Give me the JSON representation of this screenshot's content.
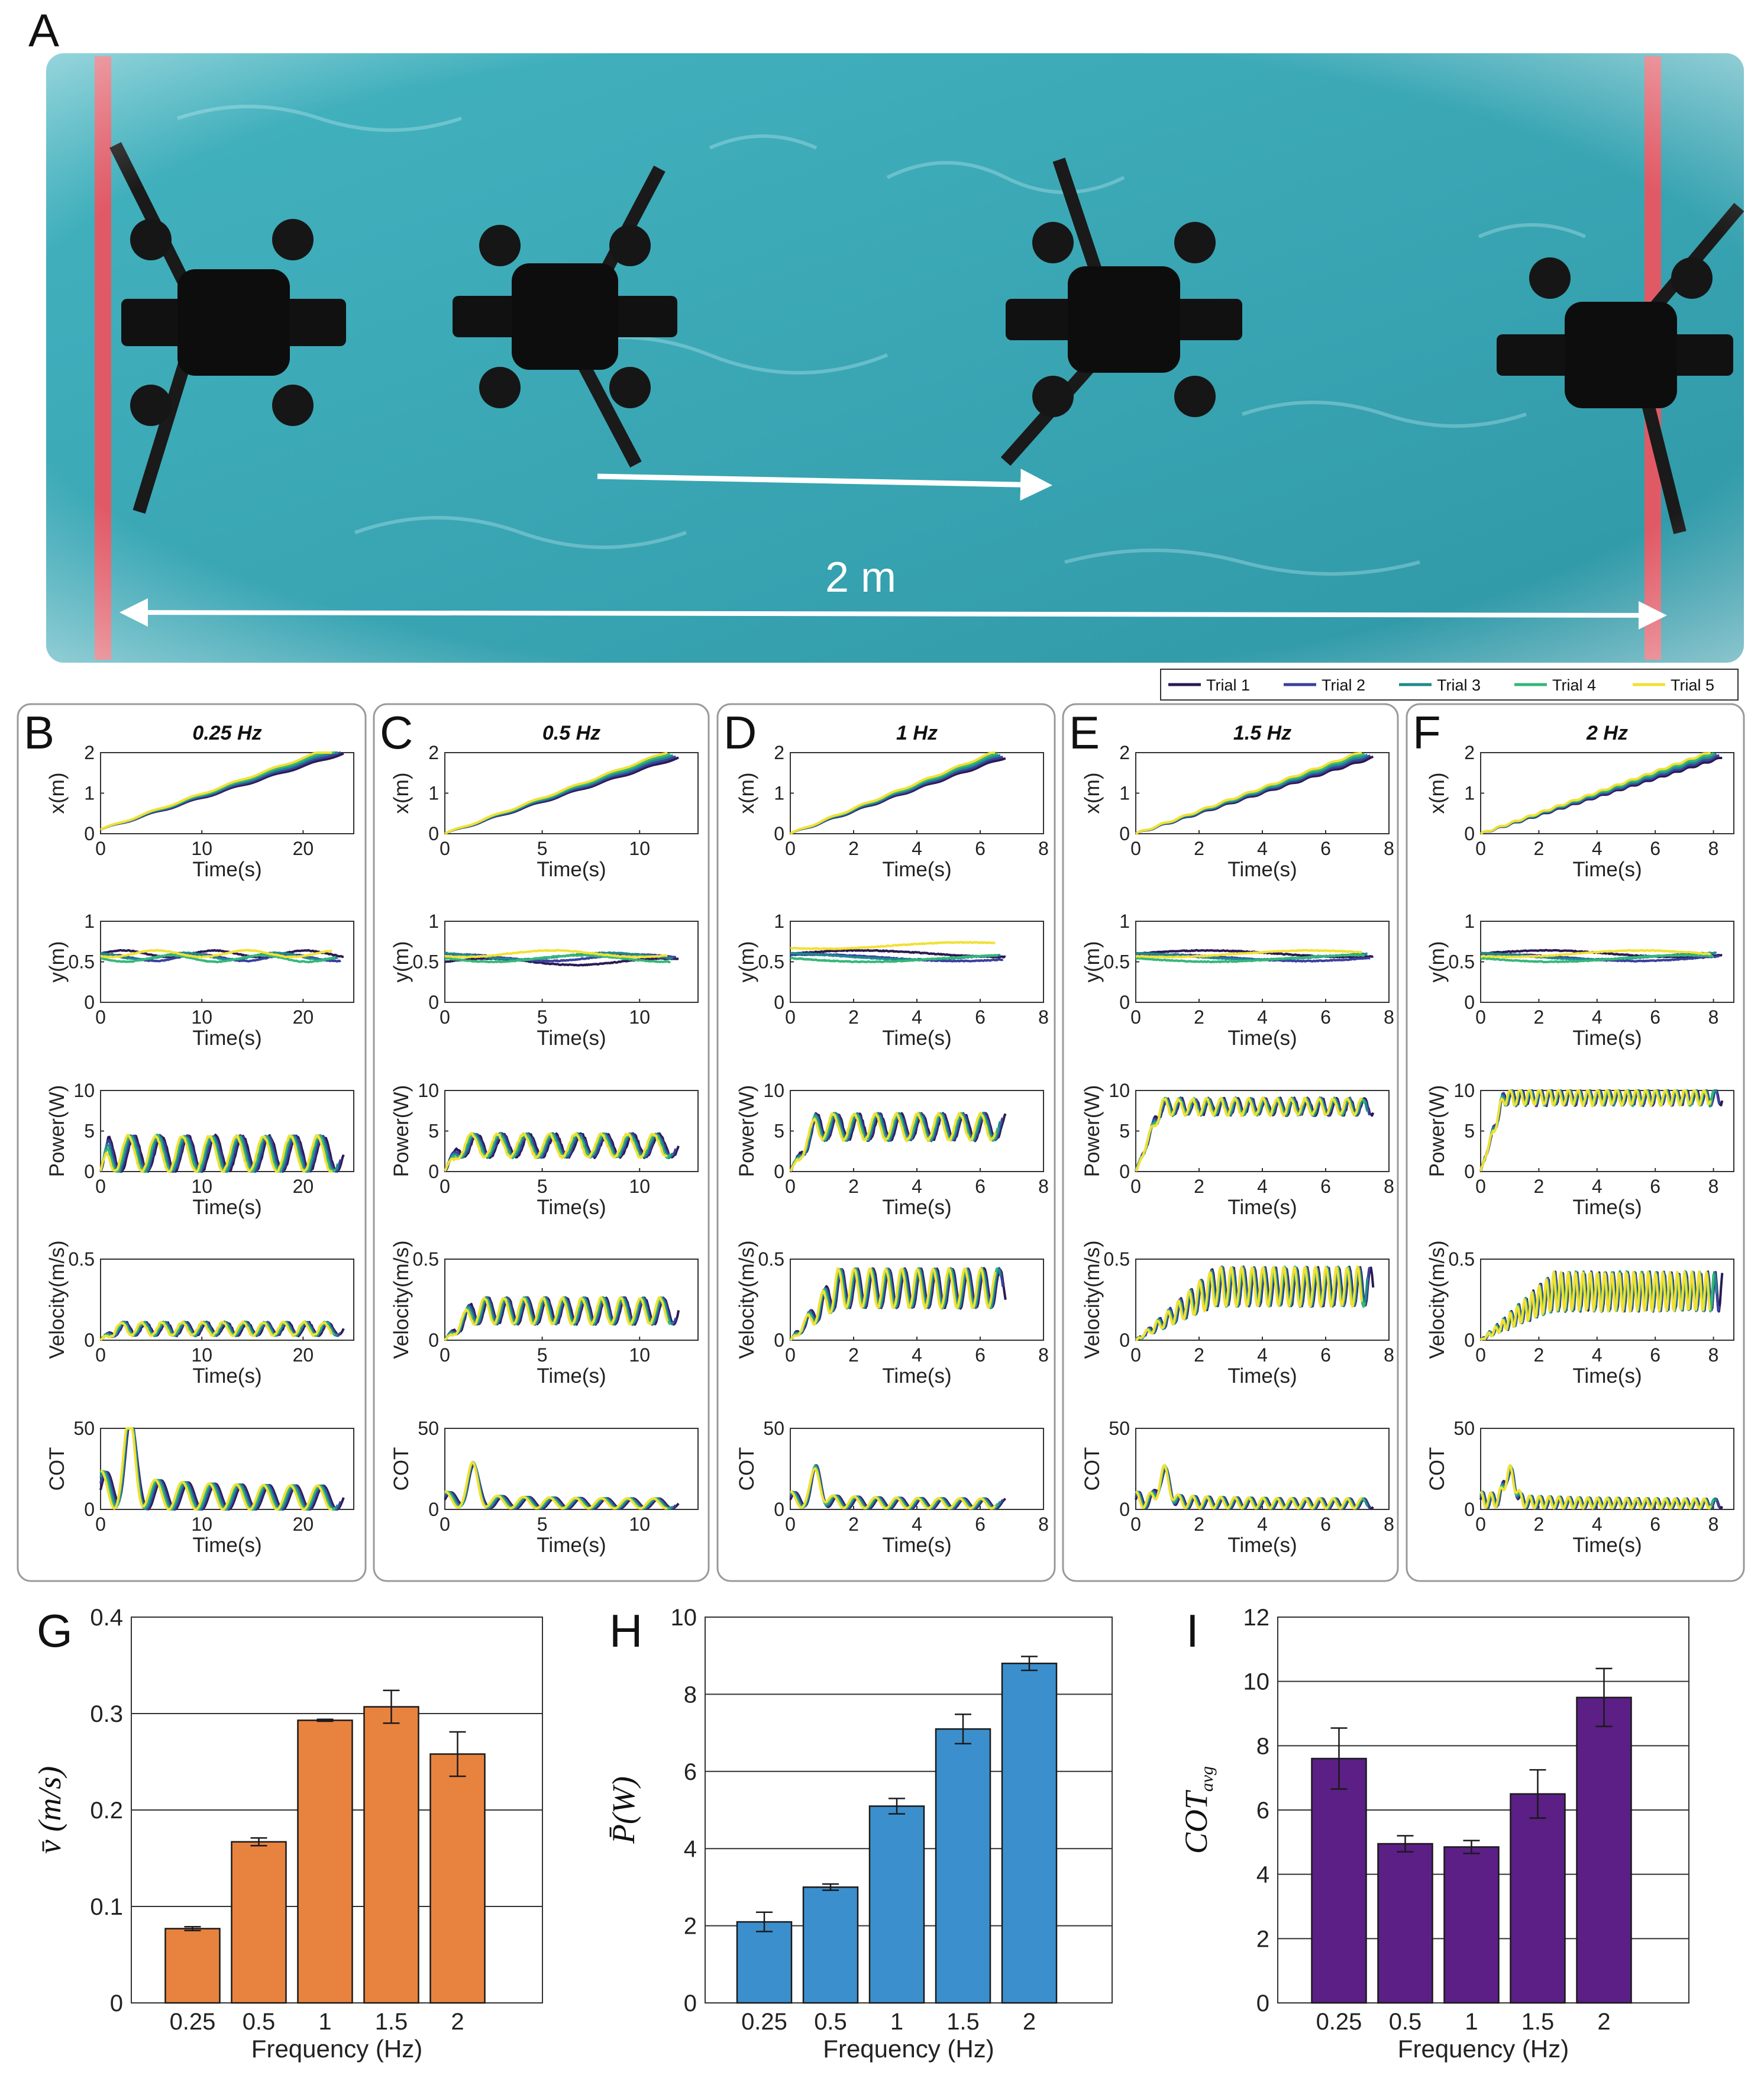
{
  "photo": {
    "label": "A",
    "distance_label": "2 m",
    "colors": {
      "water": "#3aa6b4",
      "water_dark": "#2a8896",
      "tape": "#e05a66",
      "robot": "#121212"
    }
  },
  "legend": [
    "Trial 1",
    "Trial 2",
    "Trial 3",
    "Trial 4",
    "Trial 5"
  ],
  "trial_colors": [
    "#2a1a52",
    "#3b3f9e",
    "#1f8a8c",
    "#35b779",
    "#f2e034"
  ],
  "chart_data": [
    {
      "type": "line",
      "panel": "B",
      "title": "0.25 Hz",
      "freq": 0.25,
      "tmax": 24,
      "xlim": [
        0,
        25
      ],
      "xticks": [
        0,
        10,
        20
      ],
      "xlabel": "Time(s)",
      "rows": [
        {
          "ylabel": "x(m)",
          "ylim": [
            0,
            2
          ],
          "yticks": [
            0,
            1,
            2
          ]
        },
        {
          "ylabel": "y(m)",
          "ylim": [
            0,
            1
          ],
          "yticks": [
            0,
            0.5,
            1
          ]
        },
        {
          "ylabel": "Power(W)",
          "ylim": [
            0,
            10
          ],
          "yticks": [
            0,
            5,
            10
          ]
        },
        {
          "ylabel": "Velocity(m/s)",
          "ylim": [
            0,
            0.5
          ],
          "yticks": [
            0,
            0.5
          ]
        },
        {
          "ylabel": "COT",
          "ylim": [
            0,
            50
          ],
          "yticks": [
            0,
            50
          ]
        }
      ]
    },
    {
      "type": "line",
      "panel": "C",
      "title": "0.5 Hz",
      "freq": 0.5,
      "tmax": 12,
      "xlim": [
        0,
        13
      ],
      "xticks": [
        0,
        5,
        10
      ],
      "xlabel": "Time(s)",
      "rows": [
        {
          "ylabel": "x(m)",
          "ylim": [
            0,
            2
          ],
          "yticks": [
            0,
            1,
            2
          ]
        },
        {
          "ylabel": "y(m)",
          "ylim": [
            0,
            1
          ],
          "yticks": [
            0,
            0.5,
            1
          ]
        },
        {
          "ylabel": "Power(W)",
          "ylim": [
            0,
            10
          ],
          "yticks": [
            0,
            5,
            10
          ]
        },
        {
          "ylabel": "Velocity(m/s)",
          "ylim": [
            0,
            0.5
          ],
          "yticks": [
            0,
            0.5
          ]
        },
        {
          "ylabel": "COT",
          "ylim": [
            0,
            50
          ],
          "yticks": [
            0,
            50
          ]
        }
      ]
    },
    {
      "type": "line",
      "panel": "D",
      "title": "1 Hz",
      "freq": 1,
      "tmax": 6.8,
      "xlim": [
        0,
        8
      ],
      "xticks": [
        0,
        2,
        4,
        6,
        8
      ],
      "xlabel": "Time(s)",
      "rows": [
        {
          "ylabel": "x(m)",
          "ylim": [
            0,
            2
          ],
          "yticks": [
            0,
            1,
            2
          ]
        },
        {
          "ylabel": "y(m)",
          "ylim": [
            0,
            1
          ],
          "yticks": [
            0,
            0.5,
            1
          ]
        },
        {
          "ylabel": "Power(W)",
          "ylim": [
            0,
            10
          ],
          "yticks": [
            0,
            5,
            10
          ]
        },
        {
          "ylabel": "Velocity(m/s)",
          "ylim": [
            0,
            0.5
          ],
          "yticks": [
            0,
            0.5
          ]
        },
        {
          "ylabel": "COT",
          "ylim": [
            0,
            50
          ],
          "yticks": [
            0,
            50
          ]
        }
      ]
    },
    {
      "type": "line",
      "panel": "E",
      "title": "1.5 Hz",
      "freq": 1.5,
      "tmax": 7.5,
      "xlim": [
        0,
        8
      ],
      "xticks": [
        0,
        2,
        4,
        6,
        8
      ],
      "xlabel": "Time(s)",
      "rows": [
        {
          "ylabel": "x(m)",
          "ylim": [
            0,
            2
          ],
          "yticks": [
            0,
            1,
            2
          ]
        },
        {
          "ylabel": "y(m)",
          "ylim": [
            0,
            1
          ],
          "yticks": [
            0,
            0.5,
            1
          ]
        },
        {
          "ylabel": "Power(W)",
          "ylim": [
            0,
            10
          ],
          "yticks": [
            0,
            5,
            10
          ]
        },
        {
          "ylabel": "Velocity(m/s)",
          "ylim": [
            0,
            0.5
          ],
          "yticks": [
            0,
            0.5
          ]
        },
        {
          "ylabel": "COT",
          "ylim": [
            0,
            50
          ],
          "yticks": [
            0,
            50
          ]
        }
      ]
    },
    {
      "type": "line",
      "panel": "F",
      "title": "2 Hz",
      "freq": 2,
      "tmax": 8.3,
      "xlim": [
        0,
        8.7
      ],
      "xticks": [
        0,
        2,
        4,
        6,
        8
      ],
      "xlabel": "Time(s)",
      "rows": [
        {
          "ylabel": "x(m)",
          "ylim": [
            0,
            2
          ],
          "yticks": [
            0,
            1,
            2
          ]
        },
        {
          "ylabel": "y(m)",
          "ylim": [
            0,
            1
          ],
          "yticks": [
            0,
            0.5,
            1
          ]
        },
        {
          "ylabel": "Power(W)",
          "ylim": [
            0,
            10
          ],
          "yticks": [
            0,
            5,
            10
          ]
        },
        {
          "ylabel": "Velocity(m/s)",
          "ylim": [
            0,
            0.5
          ],
          "yticks": [
            0,
            0.5
          ]
        },
        {
          "ylabel": "COT",
          "ylim": [
            0,
            50
          ],
          "yticks": [
            0,
            50
          ]
        }
      ]
    },
    {
      "type": "bar",
      "panel": "G",
      "categories": [
        "0.25",
        "0.5",
        "1",
        "1.5",
        "2"
      ],
      "values": [
        0.077,
        0.167,
        0.293,
        0.307,
        0.258
      ],
      "errors": [
        0.002,
        0.004,
        0.001,
        0.017,
        0.023
      ],
      "ylim": [
        0,
        0.4
      ],
      "yticks": [
        0,
        0.1,
        0.2,
        0.3,
        0.4
      ],
      "ytick_labels": [
        "0",
        "0.1",
        "0.2",
        "0.3",
        "0.4"
      ],
      "ylabel": "v̄ (m/s)",
      "xlabel": "Frequency (Hz)",
      "color": "#e8833f"
    },
    {
      "type": "bar",
      "panel": "H",
      "categories": [
        "0.25",
        "0.5",
        "1",
        "1.5",
        "2"
      ],
      "values": [
        2.1,
        3.0,
        5.1,
        7.1,
        8.8
      ],
      "errors": [
        0.25,
        0.08,
        0.2,
        0.38,
        0.18
      ],
      "ylim": [
        0,
        10
      ],
      "yticks": [
        0,
        2,
        4,
        6,
        8,
        10
      ],
      "ytick_labels": [
        "0",
        "2",
        "4",
        "6",
        "8",
        "10"
      ],
      "ylabel": "P̄(W)",
      "xlabel": "Frequency (Hz)",
      "color": "#3c8fcd"
    },
    {
      "type": "bar",
      "panel": "I",
      "categories": [
        "0.25",
        "0.5",
        "1",
        "1.5",
        "2"
      ],
      "values": [
        7.6,
        4.95,
        4.85,
        6.5,
        9.5
      ],
      "errors": [
        0.95,
        0.25,
        0.2,
        0.75,
        0.9
      ],
      "ylim": [
        0,
        12
      ],
      "yticks": [
        0,
        2,
        4,
        6,
        8,
        10,
        12
      ],
      "ytick_labels": [
        "0",
        "2",
        "4",
        "6",
        "8",
        "10",
        "12"
      ],
      "ylabel": "COT",
      "ylabel_sub": "avg",
      "xlabel": "Frequency (Hz)",
      "color": "#5b1f85"
    }
  ]
}
